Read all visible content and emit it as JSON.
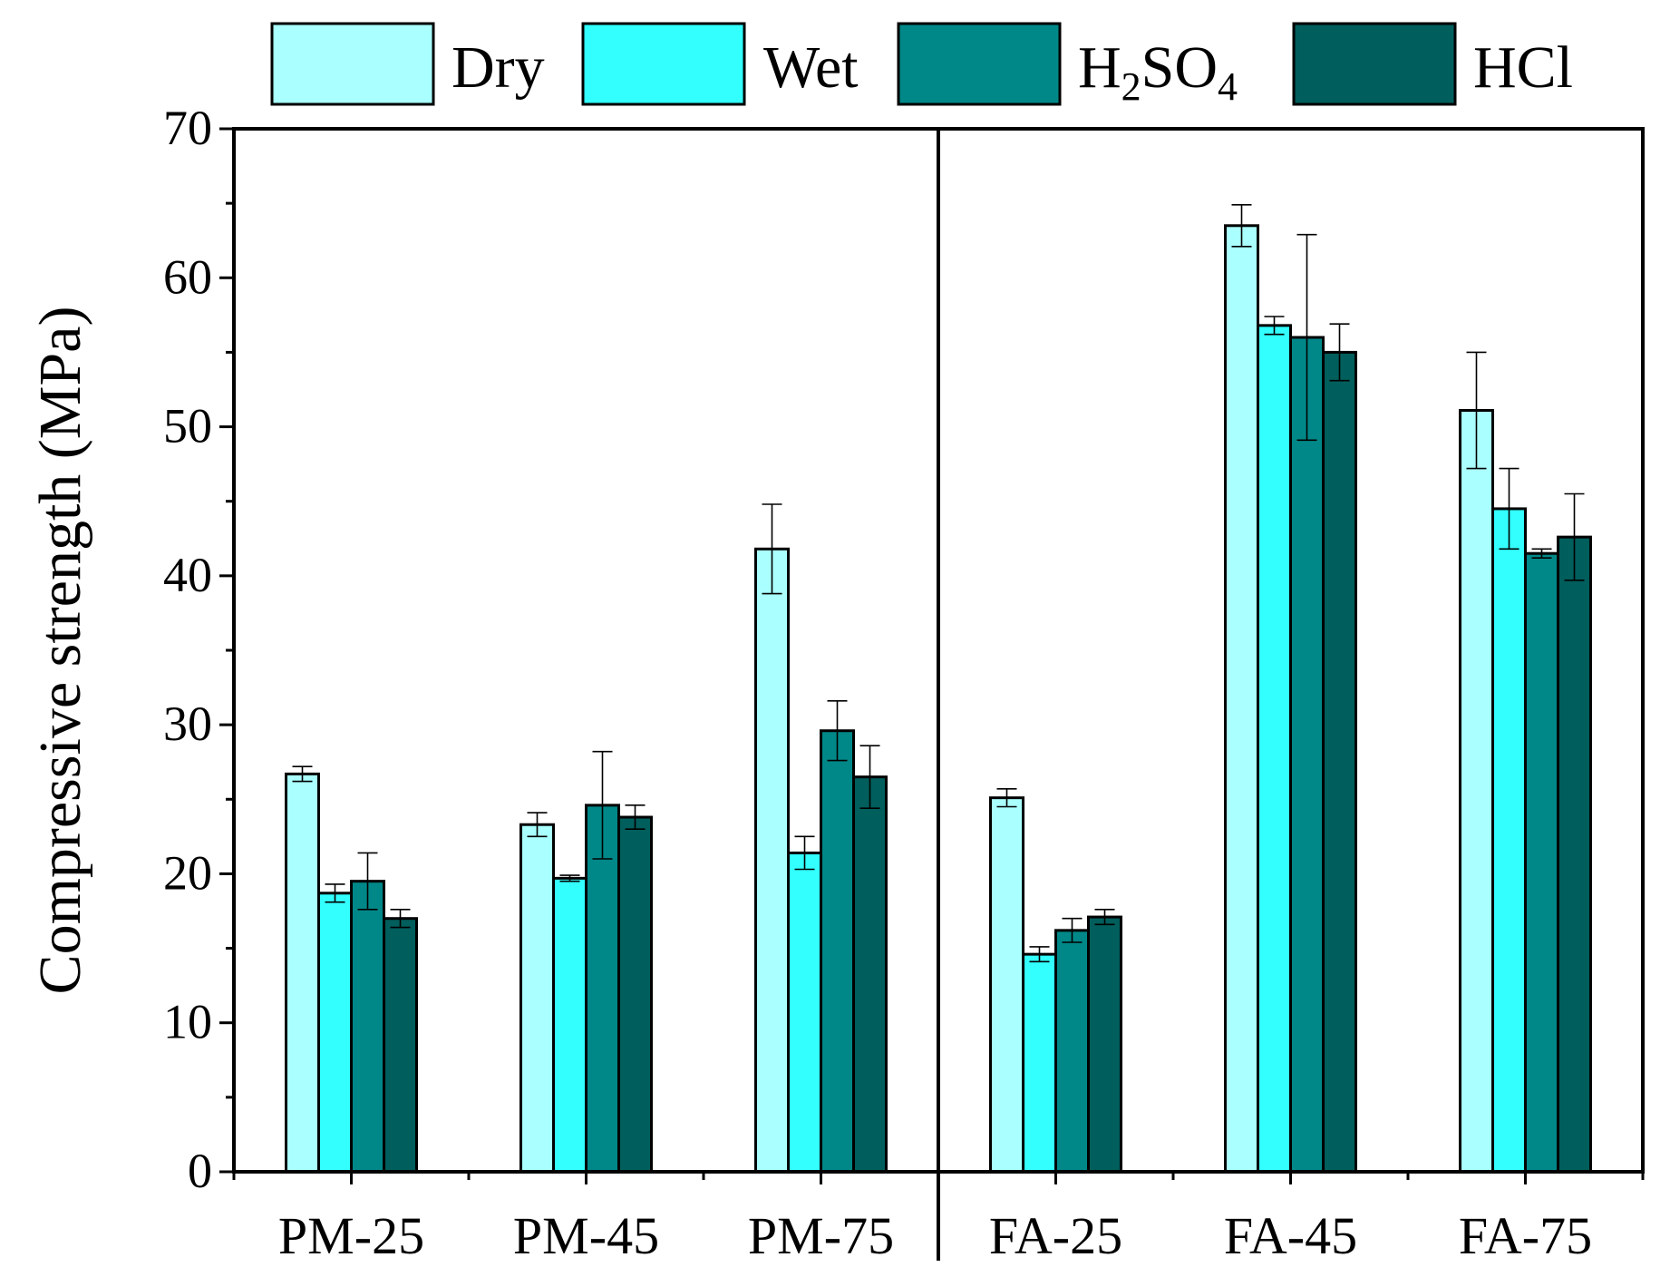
{
  "chart_data": {
    "type": "bar",
    "title": "",
    "xlabel": "",
    "ylabel": "Compressive strength (MPa)",
    "ylim": [
      0,
      70
    ],
    "yticks": [
      0,
      10,
      20,
      30,
      40,
      50,
      60,
      70
    ],
    "grid": false,
    "legend_position": "top",
    "categories": [
      "PM-25",
      "PM-45",
      "PM-75",
      "FA-25",
      "FA-45",
      "FA-75"
    ],
    "group_separator_after_category": 2,
    "series": [
      {
        "name": "Dry",
        "color": "#AAFFFF",
        "values": [
          26.7,
          23.3,
          41.8,
          25.1,
          63.5,
          51.1
        ],
        "errors": [
          0.5,
          0.8,
          3.0,
          0.6,
          1.4,
          3.9
        ]
      },
      {
        "name": "Wet",
        "color": "#33FFFF",
        "values": [
          18.7,
          19.7,
          21.4,
          14.6,
          56.8,
          44.5
        ],
        "errors": [
          0.6,
          0.2,
          1.1,
          0.5,
          0.6,
          2.7
        ]
      },
      {
        "name": "H2SO4",
        "color": "#008888",
        "values": [
          19.5,
          24.6,
          29.6,
          16.2,
          56.0,
          41.5
        ],
        "errors": [
          1.9,
          3.6,
          2.0,
          0.8,
          6.9,
          0.3
        ]
      },
      {
        "name": "HCl",
        "color": "#005E5C",
        "values": [
          17.0,
          23.8,
          26.5,
          17.1,
          55.0,
          42.6
        ],
        "errors": [
          0.6,
          0.8,
          2.1,
          0.5,
          1.9,
          2.9
        ]
      }
    ],
    "legend_labels": {
      "Dry": [
        "Dry"
      ],
      "Wet": [
        "Wet"
      ],
      "H2SO4": [
        "H",
        "2",
        "SO",
        "4"
      ],
      "HCl": [
        "HCl"
      ]
    }
  }
}
